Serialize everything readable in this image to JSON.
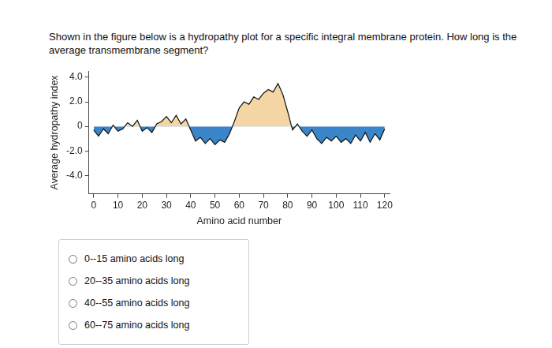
{
  "question": "Shown in the figure below is a hydropathy plot for a specific integral membrane protein. How long is the average transmembrane segment?",
  "chart_data": {
    "type": "line",
    "x_label": "Amino acid number",
    "y_label": "Average hydropathy index",
    "x": [
      0,
      2,
      4,
      6,
      8,
      10,
      12,
      14,
      16,
      18,
      20,
      22,
      24,
      26,
      28,
      30,
      32,
      34,
      36,
      38,
      40,
      42,
      44,
      46,
      48,
      50,
      52,
      54,
      56,
      58,
      60,
      62,
      64,
      66,
      68,
      70,
      72,
      74,
      76,
      78,
      80,
      82,
      84,
      86,
      88,
      90,
      92,
      94,
      96,
      98,
      100,
      102,
      104,
      106,
      108,
      110,
      112,
      114,
      116,
      118,
      120
    ],
    "values": [
      -0.3,
      -0.8,
      -0.2,
      -0.6,
      0.1,
      -0.4,
      -0.2,
      0.3,
      0.0,
      0.5,
      -0.4,
      -0.1,
      -0.5,
      0.2,
      0.4,
      0.8,
      0.3,
      0.9,
      0.2,
      0.6,
      -0.3,
      -1.2,
      -0.9,
      -1.4,
      -1.0,
      -1.5,
      -1.1,
      -1.3,
      -0.6,
      0.4,
      1.5,
      2.0,
      1.8,
      2.4,
      2.2,
      2.7,
      3.0,
      2.8,
      3.5,
      2.6,
      1.2,
      -0.3,
      0.2,
      -0.4,
      -0.8,
      -0.3,
      -1.0,
      -1.4,
      -0.9,
      -1.2,
      -0.8,
      -1.3,
      -1.0,
      -1.4,
      -0.7,
      -1.2,
      -0.5,
      -1.3,
      -0.6,
      -1.1,
      -0.2
    ],
    "color": "#111111",
    "xlim": [
      -2,
      122
    ],
    "xticks": [
      0,
      10,
      20,
      30,
      40,
      50,
      60,
      70,
      80,
      90,
      100,
      110,
      120
    ],
    "ylim": [
      -5.5,
      4.5
    ],
    "yticks": [
      {
        "value": 4,
        "label": "4.0"
      },
      {
        "value": 2,
        "label": "2.0"
      },
      0,
      {
        "value": -2,
        "label": "-2.0"
      },
      {
        "value": -4,
        "label": "-4.0"
      }
    ],
    "grid": false
  },
  "options": [
    "0--15 amino acids long",
    "20--35 amino acids long",
    "40--55 amino acids long",
    "60--75 amino acids long"
  ]
}
